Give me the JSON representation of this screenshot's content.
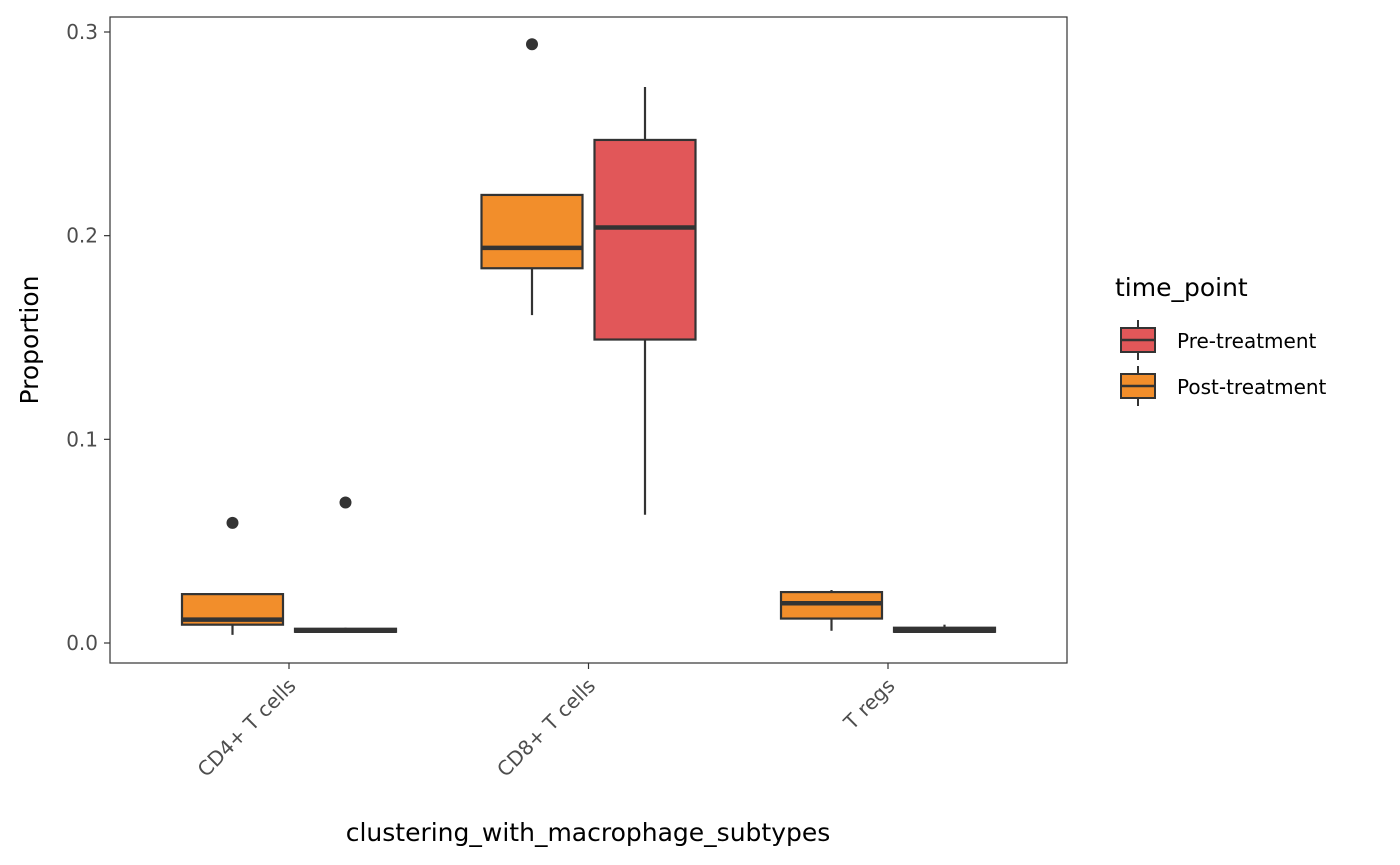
{
  "chart_data": {
    "type": "boxplot",
    "xlabel": "clustering_with_macrophage_subtypes",
    "ylabel": "Proportion",
    "categories": [
      "CD4+ T cells",
      "CD8+ T cells",
      "T regs"
    ],
    "yticks": [
      0.0,
      0.1,
      0.2,
      0.3
    ],
    "ytick_labels": [
      "0.0",
      "0.1",
      "0.2",
      "0.3"
    ],
    "ylim": [
      -0.01,
      0.307
    ],
    "grid": false,
    "legend": {
      "title": "time_point",
      "placement": "right",
      "entries": [
        {
          "name": "Pre-treatment",
          "color": "#E15759"
        },
        {
          "name": "Post-treatment",
          "color": "#F28E2B"
        }
      ]
    },
    "boxes": [
      {
        "category": "CD4+ T cells",
        "slot": "left",
        "series": "Post-treatment",
        "color": "#F28E2B",
        "whisker_low": 0.004,
        "q1": 0.009,
        "median": 0.0115,
        "q3": 0.024,
        "whisker_high": 0.024,
        "outliers": [
          0.059
        ]
      },
      {
        "category": "CD4+ T cells",
        "slot": "right",
        "series": "Pre-treatment",
        "color": "#E15759",
        "whisker_low": 0.005,
        "q1": 0.0055,
        "median": 0.006,
        "q3": 0.007,
        "whisker_high": 0.0075,
        "outliers": [
          0.069
        ]
      },
      {
        "category": "CD8+ T cells",
        "slot": "left",
        "series": "Post-treatment",
        "color": "#F28E2B",
        "whisker_low": 0.161,
        "q1": 0.184,
        "median": 0.194,
        "q3": 0.22,
        "whisker_high": 0.22,
        "outliers": [
          0.294
        ]
      },
      {
        "category": "CD8+ T cells",
        "slot": "right",
        "series": "Pre-treatment",
        "color": "#E15759",
        "whisker_low": 0.063,
        "q1": 0.149,
        "median": 0.204,
        "q3": 0.247,
        "whisker_high": 0.273,
        "outliers": []
      },
      {
        "category": "T regs",
        "slot": "left",
        "series": "Post-treatment",
        "color": "#F28E2B",
        "whisker_low": 0.006,
        "q1": 0.012,
        "median": 0.0195,
        "q3": 0.025,
        "whisker_high": 0.026,
        "outliers": []
      },
      {
        "category": "T regs",
        "slot": "right",
        "series": "Pre-treatment",
        "color": "#E15759",
        "whisker_low": 0.005,
        "q1": 0.0055,
        "median": 0.006,
        "q3": 0.0075,
        "whisker_high": 0.009,
        "outliers": []
      }
    ]
  }
}
